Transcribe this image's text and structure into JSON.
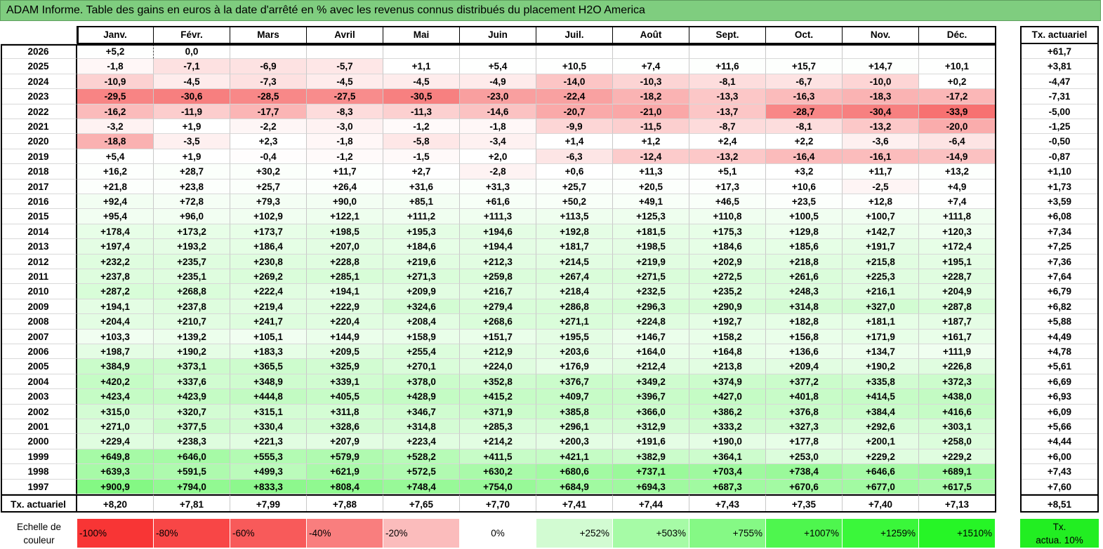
{
  "title": "ADAM Informe. Table des gains en euros à la date d'arrêté en % avec les revenus connus distribués du placement H2O America",
  "months": [
    "Janv.",
    "Févr.",
    "Mars",
    "Avril",
    "Mai",
    "Juin",
    "Juil.",
    "Août",
    "Sept.",
    "Oct.",
    "Nov.",
    "Déc."
  ],
  "rate_header": "Tx. actuariel",
  "rows": [
    {
      "year": "2026",
      "values": [
        "+5,2",
        "0,0",
        "",
        "",
        "",
        "",
        "",
        "",
        "",
        "",
        "",
        ""
      ],
      "rate": "+61,7"
    },
    {
      "year": "2025",
      "values": [
        "-1,8",
        "-7,1",
        "-6,9",
        "-5,7",
        "+1,1",
        "+5,4",
        "+10,5",
        "+7,4",
        "+11,6",
        "+15,7",
        "+14,7",
        "+10,1"
      ],
      "rate": "+3,81"
    },
    {
      "year": "2024",
      "values": [
        "-10,9",
        "-4,5",
        "-7,3",
        "-4,5",
        "-4,5",
        "-4,9",
        "-14,0",
        "-10,3",
        "-8,1",
        "-6,7",
        "-10,0",
        "+0,2"
      ],
      "rate": "-4,47"
    },
    {
      "year": "2023",
      "values": [
        "-29,5",
        "-30,6",
        "-28,5",
        "-27,5",
        "-30,5",
        "-23,0",
        "-22,4",
        "-18,2",
        "-13,3",
        "-16,3",
        "-18,3",
        "-17,2"
      ],
      "rate": "-7,31"
    },
    {
      "year": "2022",
      "values": [
        "-16,2",
        "-11,9",
        "-17,7",
        "-8,3",
        "-11,3",
        "-14,6",
        "-20,7",
        "-21,0",
        "-13,7",
        "-28,7",
        "-30,4",
        "-33,9"
      ],
      "rate": "-5,00"
    },
    {
      "year": "2021",
      "values": [
        "-3,2",
        "+1,9",
        "-2,2",
        "-3,0",
        "-1,2",
        "-1,8",
        "-9,9",
        "-11,5",
        "-8,7",
        "-8,1",
        "-13,2",
        "-20,0"
      ],
      "rate": "-1,25"
    },
    {
      "year": "2020",
      "values": [
        "-18,8",
        "-3,5",
        "+2,3",
        "-1,8",
        "-5,8",
        "-3,4",
        "+1,4",
        "+1,2",
        "+2,4",
        "+2,2",
        "-3,6",
        "-6,4"
      ],
      "rate": "-0,50"
    },
    {
      "year": "2019",
      "values": [
        "+5,4",
        "+1,9",
        "-0,4",
        "-1,2",
        "-1,5",
        "+2,0",
        "-6,3",
        "-12,4",
        "-13,2",
        "-16,4",
        "-16,1",
        "-14,9"
      ],
      "rate": "-0,87"
    },
    {
      "year": "2018",
      "values": [
        "+16,2",
        "+28,7",
        "+30,2",
        "+11,7",
        "+2,7",
        "-2,8",
        "+0,6",
        "+11,3",
        "+5,1",
        "+3,2",
        "+11,7",
        "+13,2"
      ],
      "rate": "+1,10"
    },
    {
      "year": "2017",
      "values": [
        "+21,8",
        "+23,8",
        "+25,7",
        "+26,4",
        "+31,6",
        "+31,3",
        "+25,7",
        "+20,5",
        "+17,3",
        "+10,6",
        "-2,5",
        "+4,9"
      ],
      "rate": "+1,73"
    },
    {
      "year": "2016",
      "values": [
        "+92,4",
        "+72,8",
        "+79,3",
        "+90,0",
        "+85,1",
        "+61,6",
        "+50,2",
        "+49,1",
        "+46,5",
        "+23,5",
        "+12,8",
        "+7,4"
      ],
      "rate": "+3,59"
    },
    {
      "year": "2015",
      "values": [
        "+95,4",
        "+96,0",
        "+102,9",
        "+122,1",
        "+111,2",
        "+111,3",
        "+113,5",
        "+125,3",
        "+110,8",
        "+100,5",
        "+100,7",
        "+111,8"
      ],
      "rate": "+6,08"
    },
    {
      "year": "2014",
      "values": [
        "+178,4",
        "+173,2",
        "+173,7",
        "+198,5",
        "+195,3",
        "+194,6",
        "+192,8",
        "+181,5",
        "+175,3",
        "+129,8",
        "+142,7",
        "+120,3"
      ],
      "rate": "+7,34"
    },
    {
      "year": "2013",
      "values": [
        "+197,4",
        "+193,2",
        "+186,4",
        "+207,0",
        "+184,6",
        "+194,4",
        "+181,7",
        "+198,5",
        "+184,6",
        "+185,6",
        "+191,7",
        "+172,4"
      ],
      "rate": "+7,25"
    },
    {
      "year": "2012",
      "values": [
        "+232,2",
        "+235,7",
        "+230,8",
        "+228,8",
        "+219,6",
        "+212,3",
        "+214,5",
        "+219,9",
        "+202,9",
        "+218,8",
        "+215,8",
        "+195,1"
      ],
      "rate": "+7,36"
    },
    {
      "year": "2011",
      "values": [
        "+237,8",
        "+235,1",
        "+269,2",
        "+285,1",
        "+271,3",
        "+259,8",
        "+267,4",
        "+271,5",
        "+272,5",
        "+261,6",
        "+225,3",
        "+228,7"
      ],
      "rate": "+7,64"
    },
    {
      "year": "2010",
      "values": [
        "+287,2",
        "+268,8",
        "+222,4",
        "+194,1",
        "+209,9",
        "+216,7",
        "+218,4",
        "+232,5",
        "+235,2",
        "+248,3",
        "+216,1",
        "+204,9"
      ],
      "rate": "+6,79"
    },
    {
      "year": "2009",
      "values": [
        "+194,1",
        "+237,8",
        "+219,4",
        "+222,9",
        "+324,6",
        "+279,4",
        "+286,8",
        "+296,3",
        "+290,9",
        "+314,8",
        "+327,0",
        "+287,8"
      ],
      "rate": "+6,82"
    },
    {
      "year": "2008",
      "values": [
        "+204,4",
        "+210,7",
        "+241,7",
        "+220,4",
        "+208,4",
        "+268,6",
        "+271,1",
        "+224,8",
        "+192,7",
        "+182,8",
        "+181,1",
        "+187,7"
      ],
      "rate": "+5,88"
    },
    {
      "year": "2007",
      "values": [
        "+103,3",
        "+139,2",
        "+105,1",
        "+144,9",
        "+158,9",
        "+151,7",
        "+195,5",
        "+146,7",
        "+158,2",
        "+156,8",
        "+171,9",
        "+161,7"
      ],
      "rate": "+4,49"
    },
    {
      "year": "2006",
      "values": [
        "+198,7",
        "+190,2",
        "+183,3",
        "+209,5",
        "+255,4",
        "+212,9",
        "+203,6",
        "+164,0",
        "+164,8",
        "+136,6",
        "+134,7",
        "+111,9"
      ],
      "rate": "+4,78"
    },
    {
      "year": "2005",
      "values": [
        "+384,9",
        "+373,1",
        "+365,5",
        "+325,9",
        "+270,1",
        "+224,0",
        "+176,9",
        "+212,4",
        "+213,8",
        "+209,4",
        "+190,2",
        "+226,8"
      ],
      "rate": "+5,61"
    },
    {
      "year": "2004",
      "values": [
        "+420,2",
        "+337,6",
        "+348,9",
        "+339,1",
        "+378,0",
        "+352,8",
        "+376,7",
        "+349,2",
        "+374,9",
        "+377,2",
        "+335,8",
        "+372,3"
      ],
      "rate": "+6,69"
    },
    {
      "year": "2003",
      "values": [
        "+423,4",
        "+423,9",
        "+444,8",
        "+405,5",
        "+428,9",
        "+415,2",
        "+409,7",
        "+396,7",
        "+427,0",
        "+401,8",
        "+414,5",
        "+438,0"
      ],
      "rate": "+6,93"
    },
    {
      "year": "2002",
      "values": [
        "+315,0",
        "+320,7",
        "+315,1",
        "+311,8",
        "+346,7",
        "+371,9",
        "+385,8",
        "+366,0",
        "+386,2",
        "+376,8",
        "+384,4",
        "+416,6"
      ],
      "rate": "+6,09"
    },
    {
      "year": "2001",
      "values": [
        "+271,0",
        "+377,5",
        "+330,4",
        "+328,6",
        "+314,8",
        "+285,3",
        "+296,1",
        "+312,9",
        "+333,2",
        "+327,3",
        "+292,6",
        "+303,1"
      ],
      "rate": "+5,66"
    },
    {
      "year": "2000",
      "values": [
        "+229,4",
        "+238,3",
        "+221,3",
        "+207,9",
        "+223,4",
        "+214,2",
        "+200,3",
        "+191,6",
        "+190,0",
        "+177,8",
        "+200,1",
        "+258,0"
      ],
      "rate": "+4,44"
    },
    {
      "year": "1999",
      "values": [
        "+649,8",
        "+646,0",
        "+555,3",
        "+579,9",
        "+528,2",
        "+411,5",
        "+421,1",
        "+382,9",
        "+364,1",
        "+253,0",
        "+229,2",
        "+229,2"
      ],
      "rate": "+6,00"
    },
    {
      "year": "1998",
      "values": [
        "+639,3",
        "+591,5",
        "+499,3",
        "+621,9",
        "+572,5",
        "+630,2",
        "+680,6",
        "+737,1",
        "+703,4",
        "+738,4",
        "+646,6",
        "+689,1"
      ],
      "rate": "+7,43"
    },
    {
      "year": "1997",
      "values": [
        "+900,9",
        "+794,0",
        "+833,3",
        "+808,4",
        "+748,4",
        "+754,0",
        "+684,9",
        "+694,3",
        "+687,3",
        "+670,6",
        "+677,0",
        "+617,5"
      ],
      "rate": "+7,60"
    }
  ],
  "totals": {
    "label": "Tx. actuariel",
    "values": [
      "+8,20",
      "+7,81",
      "+7,99",
      "+7,88",
      "+7,65",
      "+7,70",
      "+7,41",
      "+7,44",
      "+7,43",
      "+7,35",
      "+7,40",
      "+7,13"
    ],
    "rate": "+8,51"
  },
  "legend": {
    "label_line1": "Echelle de",
    "label_line2": "couleur",
    "items": [
      {
        "text": "-100%",
        "color": "#f83535"
      },
      {
        "text": "-80%",
        "color": "#f84646"
      },
      {
        "text": "-60%",
        "color": "#f85a5a"
      },
      {
        "text": "-40%",
        "color": "#f97e7e"
      },
      {
        "text": "-20%",
        "color": "#fbbcbc"
      },
      {
        "text": "0%",
        "color": "#ffffff"
      },
      {
        "text": "+252%",
        "color": "#d2fbd2"
      },
      {
        "text": "+503%",
        "color": "#a6fba6"
      },
      {
        "text": "+755%",
        "color": "#85f985"
      },
      {
        "text": "+1007%",
        "color": "#4ef64e"
      },
      {
        "text": "+1259%",
        "color": "#3af73a"
      },
      {
        "text": "+1510%",
        "color": "#26f526"
      }
    ],
    "rate_label_line1": "Tx.",
    "rate_label_line2": "actua. 10%",
    "rate_color": "#22ee22"
  },
  "colors": {
    "title_bg": "#7fcd7f",
    "neg_max": "#f55858",
    "pos_max": "#79f779"
  }
}
